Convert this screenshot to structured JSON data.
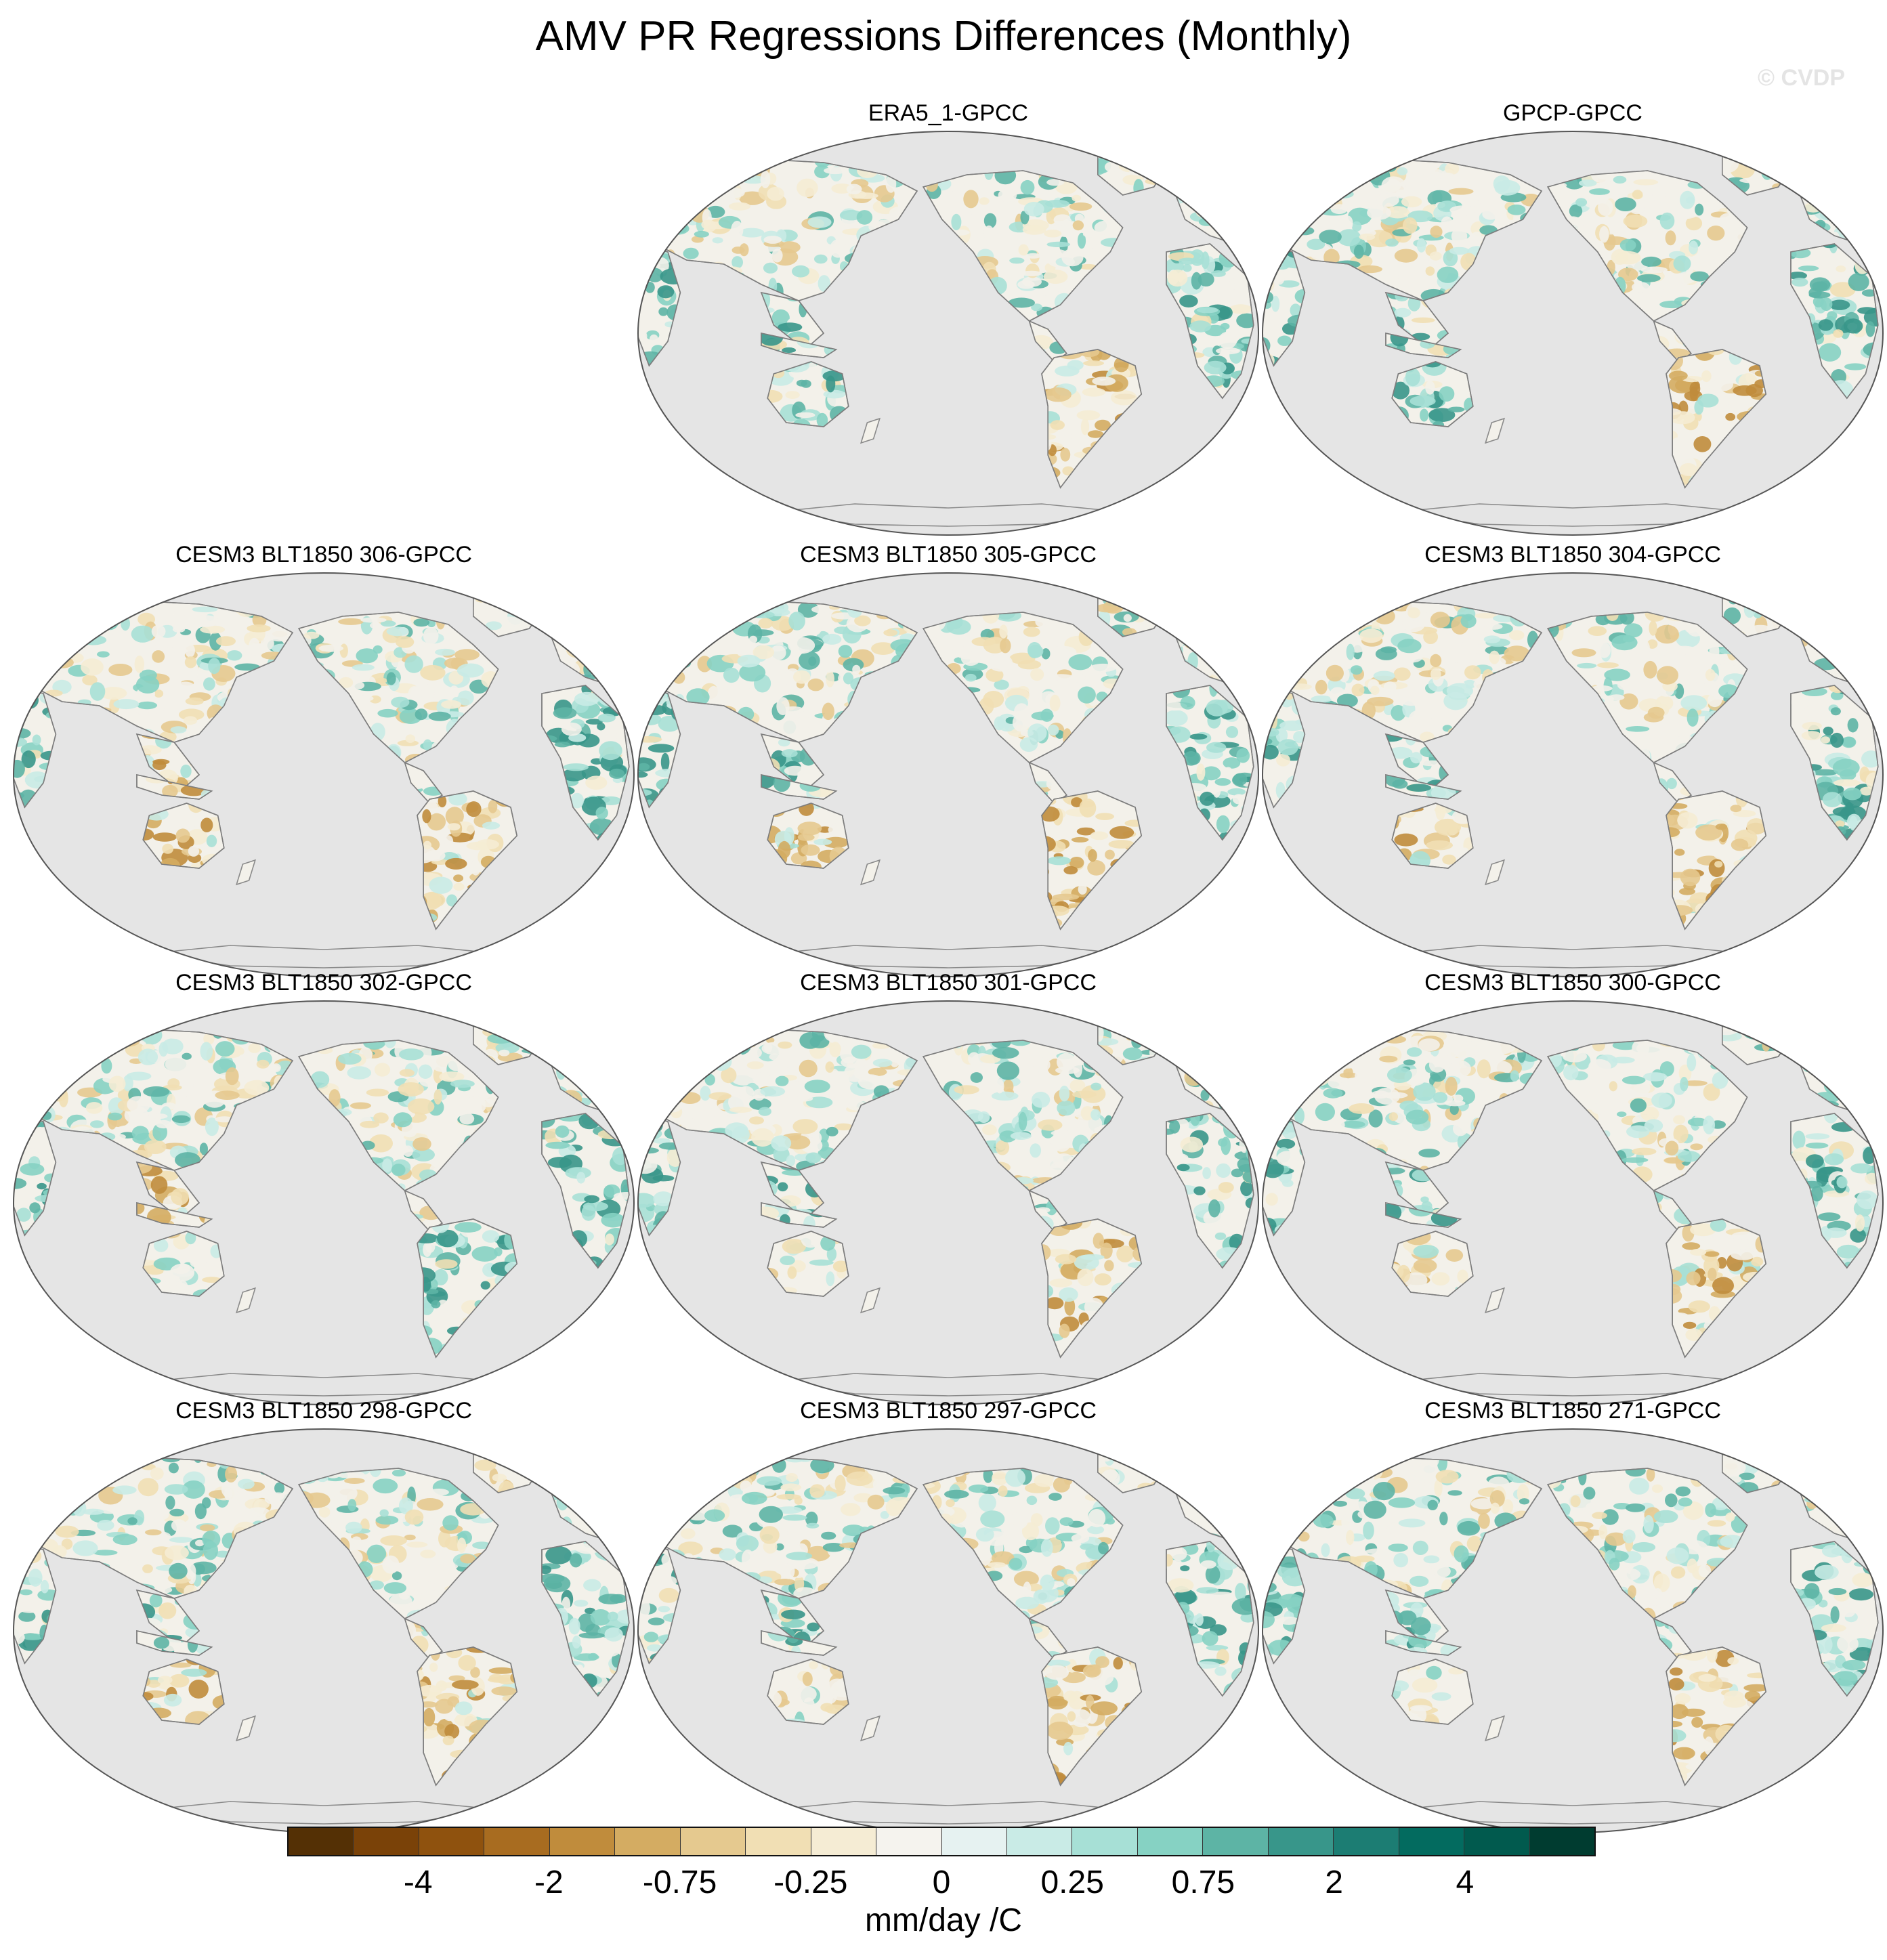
{
  "title": "AMV PR Regressions Differences (Monthly)",
  "watermark": "© CVDP",
  "panels": [
    {
      "id": "era5",
      "label": "ERA5_1-GPCC",
      "amazon": "dry",
      "australia": "wet",
      "se_asia": "wet",
      "africa": "wet"
    },
    {
      "id": "gpcp",
      "label": "GPCP-GPCC",
      "amazon": "dry",
      "australia": "wet",
      "se_asia": "wet",
      "africa": "wet"
    },
    {
      "id": "m306",
      "label": "CESM3 BLT1850 306-GPCC",
      "amazon": "dry",
      "australia": "dry",
      "se_asia": "dry",
      "africa": "wet"
    },
    {
      "id": "m305",
      "label": "CESM3 BLT1850 305-GPCC",
      "amazon": "dry",
      "australia": "dry",
      "se_asia": "wet",
      "africa": "wet"
    },
    {
      "id": "m304",
      "label": "CESM3 BLT1850 304-GPCC",
      "amazon": "dry",
      "australia": "dry",
      "se_asia": "wet",
      "africa": "wet"
    },
    {
      "id": "m302",
      "label": "CESM3 BLT1850 302-GPCC",
      "amazon": "wet",
      "australia": "neutral",
      "se_asia": "dry",
      "africa": "wet"
    },
    {
      "id": "m301",
      "label": "CESM3 BLT1850 301-GPCC",
      "amazon": "dry",
      "australia": "neutral",
      "se_asia": "wet",
      "africa": "wet"
    },
    {
      "id": "m300",
      "label": "CESM3 BLT1850 300-GPCC",
      "amazon": "dry",
      "australia": "dry",
      "se_asia": "wet",
      "africa": "wet"
    },
    {
      "id": "m298",
      "label": "CESM3 BLT1850 298-GPCC",
      "amazon": "dry",
      "australia": "dry",
      "se_asia": "wet",
      "africa": "wet"
    },
    {
      "id": "m297",
      "label": "CESM3 BLT1850 297-GPCC",
      "amazon": "dry",
      "australia": "neutral",
      "se_asia": "wet",
      "africa": "wet"
    },
    {
      "id": "m271",
      "label": "CESM3 BLT1850 271-GPCC",
      "amazon": "dry",
      "australia": "neutral",
      "se_asia": "wet",
      "africa": "wet"
    }
  ],
  "colorbar": {
    "units": "mm/day /C",
    "tick_labels": [
      "-4",
      "-2",
      "-0.75",
      "-0.25",
      "0",
      "0.25",
      "0.75",
      "2",
      "4"
    ],
    "colors": [
      "#543005",
      "#7a4208",
      "#8f520e",
      "#a86c20",
      "#c08c3c",
      "#d4ac62",
      "#e5c98f",
      "#f1dfb4",
      "#f5ecd4",
      "#f5f3ee",
      "#e6f2f1",
      "#c9ebe6",
      "#a7e0d6",
      "#86d2c3",
      "#5db4a5",
      "#38968a",
      "#1c7d73",
      "#036b5f",
      "#015a4e",
      "#003c30"
    ],
    "land_neutral": "#f3f1ea",
    "ocean": "#e5e5e5"
  }
}
